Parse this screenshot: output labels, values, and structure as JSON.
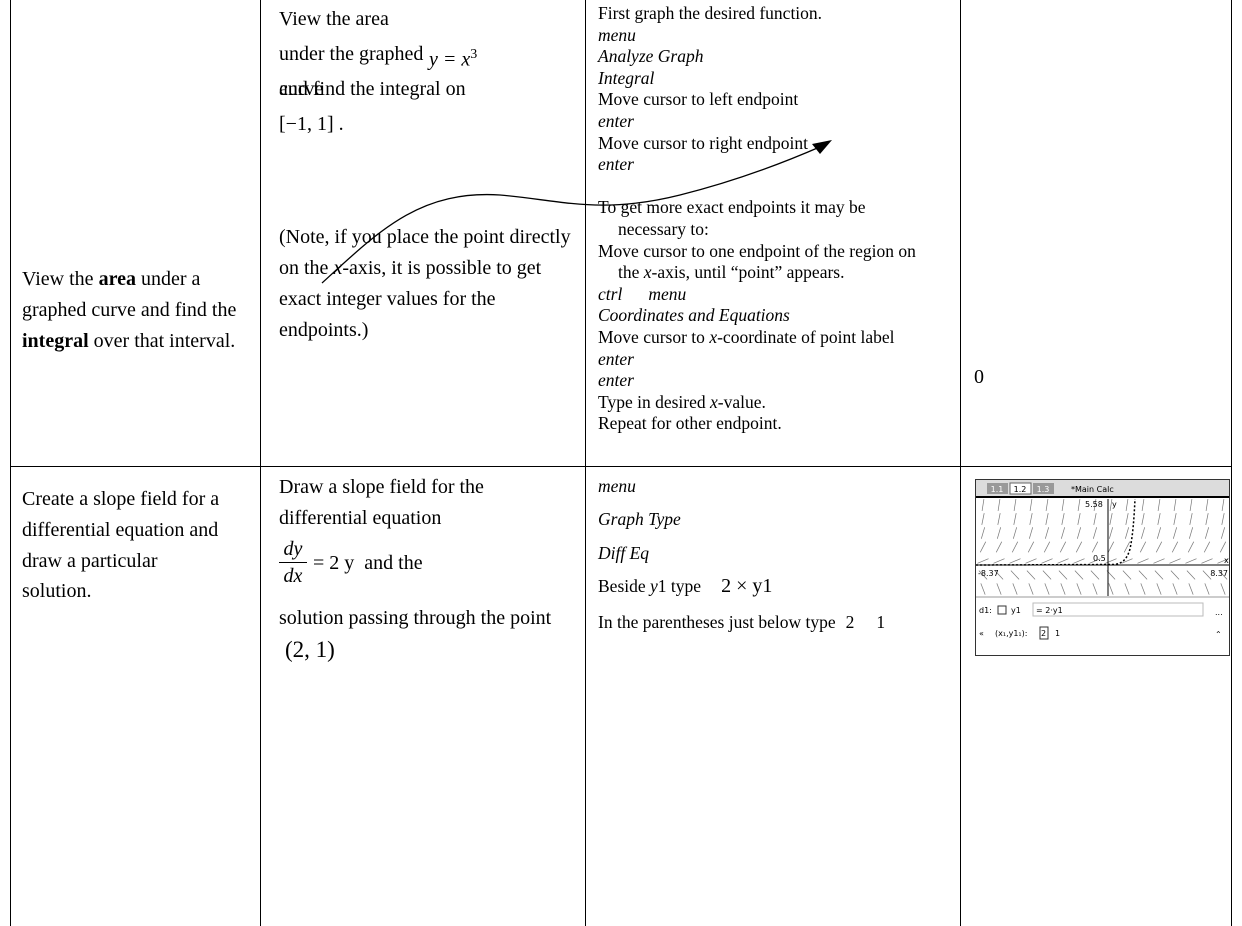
{
  "table": {
    "rows": [
      {
        "task": [
          "View the ",
          "area",
          " under a graphed curve and find the ",
          "integral",
          " over that interval."
        ],
        "example": {
          "intro": "View the area under the graphed curve",
          "equation": "y = x",
          "exponent": "3",
          "interval_text": "and find the integral on",
          "interval": "[−1, 1] .",
          "note": [
            "(Note, if you place the point directly on the ",
            "x",
            "-axis, it is possible to get exact integer values for the endpoints.)"
          ]
        },
        "steps": [
          [
            "First graph the desired function."
          ],
          [
            "menu"
          ],
          [
            "Analyze Graph"
          ],
          [
            "Integral"
          ],
          [
            "Move cursor to left endpoint"
          ],
          [
            "enter"
          ],
          [
            "Move cursor to right endpoint"
          ],
          [
            "enter"
          ],
          [
            "To get more exact endpoints it may be necessary to:"
          ],
          [
            "Move cursor to one endpoint of the region on the ",
            "x",
            "-axis, until “point” appears."
          ],
          [
            "ctrl",
            "menu"
          ],
          [
            "Coordinates and Equations"
          ],
          [
            "Move cursor to ",
            "x",
            "-coordinate of point label"
          ],
          [
            "enter"
          ],
          [
            "enter"
          ],
          [
            "Type in desired ",
            "x",
            "-value."
          ],
          [
            "Repeat for other endpoint."
          ]
        ],
        "result": "0"
      },
      {
        "task": [
          "Create a slope field for a differential equation and draw a particular solution."
        ],
        "example": {
          "intro": "Draw a slope field for the differential equation",
          "numerator": "dy",
          "denominator": "dx",
          "equation": "= 2 y",
          "joiner": "and the",
          "outro": "solution passing through the point",
          "point": "(2, 1)"
        },
        "steps": [
          [
            "menu"
          ],
          [
            "Graph Type"
          ],
          [
            "Diff Eq"
          ],
          [
            "Beside ",
            "y",
            "1 type",
            "2 × y1"
          ],
          [
            "In the parentheses just below type",
            "2",
            "1"
          ]
        ],
        "result_screen": {
          "tabs": [
            "1.1",
            "1.2",
            "1.3"
          ],
          "document": "*Main Calc",
          "y_max": "5.58",
          "y_axis": "y",
          "x_min": "-8.37",
          "x_max": "8.37",
          "mid_label": "0.5",
          "x_axis": "x",
          "row_label": "d1:",
          "function": "y1",
          "definition": "= 2·y1",
          "initial": "(x₁,y1₁):",
          "x0": "2",
          "y0": "1",
          "more": "..."
        }
      }
    ]
  }
}
